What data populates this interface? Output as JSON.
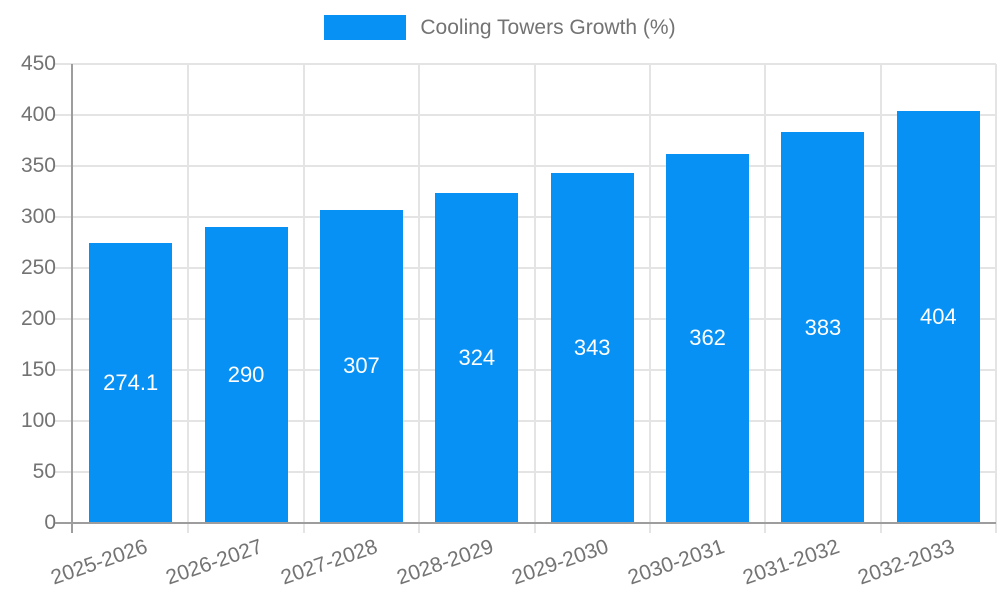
{
  "legend": {
    "label": "Cooling Towers Growth (%)"
  },
  "chart_data": {
    "type": "bar",
    "title": "Cooling Towers Growth (%)",
    "series_name": "Cooling Towers Growth (%)",
    "categories": [
      "2025-2026",
      "2026-2027",
      "2027-2028",
      "2028-2029",
      "2029-2030",
      "2030-2031",
      "2031-2032",
      "2032-2033"
    ],
    "values": [
      274.1,
      290,
      307,
      324,
      343,
      362,
      383,
      404
    ],
    "xlabel": "",
    "ylabel": "",
    "ylim": [
      0,
      450
    ],
    "ytick_step": 50,
    "grid": true,
    "legend_position": "top",
    "colors": {
      "bar": "#0891f5",
      "bar_label": "#ffffff",
      "grid_line": "#e4e4e4",
      "axis_line": "#9d9d9d",
      "text": "#737373"
    }
  }
}
